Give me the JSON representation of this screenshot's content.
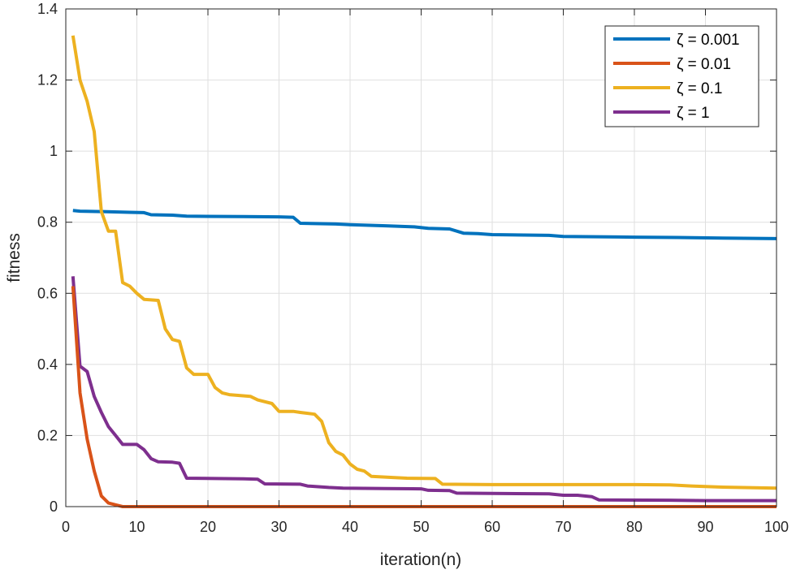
{
  "chart_data": {
    "type": "line",
    "title": "",
    "xlabel": "iteration(n)",
    "ylabel": "fitness",
    "xlim": [
      0,
      100
    ],
    "ylim": [
      0,
      1.4
    ],
    "xticks": [
      0,
      10,
      20,
      30,
      40,
      50,
      60,
      70,
      80,
      90,
      100
    ],
    "yticks": [
      0,
      0.2,
      0.4,
      0.6,
      0.8,
      1,
      1.2,
      1.4
    ],
    "ytick_labels": [
      "0",
      "0.2",
      "0.4",
      "0.6",
      "0.8",
      "1",
      "1.2",
      "1.4"
    ],
    "grid": true,
    "legend_position": "top-right",
    "series": [
      {
        "name": "ζ = 0.001",
        "color": "#0072BD",
        "points": [
          [
            1,
            0.833
          ],
          [
            2,
            0.831
          ],
          [
            5,
            0.83
          ],
          [
            9,
            0.828
          ],
          [
            11,
            0.827
          ],
          [
            12,
            0.821
          ],
          [
            15,
            0.82
          ],
          [
            17,
            0.817
          ],
          [
            25,
            0.816
          ],
          [
            30,
            0.815
          ],
          [
            32,
            0.814
          ],
          [
            33,
            0.797
          ],
          [
            38,
            0.795
          ],
          [
            40,
            0.793
          ],
          [
            45,
            0.79
          ],
          [
            49,
            0.787
          ],
          [
            51,
            0.783
          ],
          [
            54,
            0.781
          ],
          [
            56,
            0.769
          ],
          [
            58,
            0.768
          ],
          [
            60,
            0.765
          ],
          [
            68,
            0.763
          ],
          [
            70,
            0.76
          ],
          [
            80,
            0.758
          ],
          [
            86,
            0.757
          ],
          [
            94,
            0.755
          ],
          [
            100,
            0.754
          ]
        ]
      },
      {
        "name": "ζ = 0.01",
        "color": "#D95319",
        "points": [
          [
            1,
            0.62
          ],
          [
            2,
            0.32
          ],
          [
            3,
            0.19
          ],
          [
            4,
            0.1
          ],
          [
            5,
            0.03
          ],
          [
            6,
            0.01
          ],
          [
            7,
            0.005
          ],
          [
            8,
            0.0
          ],
          [
            100,
            0.0
          ]
        ]
      },
      {
        "name": "ζ = 0.1",
        "color": "#EDB120",
        "points": [
          [
            1,
            1.325
          ],
          [
            2,
            1.2
          ],
          [
            3,
            1.14
          ],
          [
            4,
            1.055
          ],
          [
            5,
            0.83
          ],
          [
            6,
            0.775
          ],
          [
            7,
            0.775
          ],
          [
            8,
            0.63
          ],
          [
            9,
            0.62
          ],
          [
            10,
            0.6
          ],
          [
            11,
            0.583
          ],
          [
            13,
            0.58
          ],
          [
            14,
            0.5
          ],
          [
            15,
            0.47
          ],
          [
            16,
            0.465
          ],
          [
            17,
            0.39
          ],
          [
            18,
            0.372
          ],
          [
            20,
            0.372
          ],
          [
            21,
            0.335
          ],
          [
            22,
            0.32
          ],
          [
            23,
            0.315
          ],
          [
            26,
            0.31
          ],
          [
            27,
            0.3
          ],
          [
            29,
            0.29
          ],
          [
            30,
            0.268
          ],
          [
            32,
            0.268
          ],
          [
            33,
            0.265
          ],
          [
            35,
            0.26
          ],
          [
            36,
            0.24
          ],
          [
            37,
            0.18
          ],
          [
            38,
            0.155
          ],
          [
            39,
            0.145
          ],
          [
            40,
            0.12
          ],
          [
            41,
            0.105
          ],
          [
            42,
            0.1
          ],
          [
            43,
            0.085
          ],
          [
            46,
            0.082
          ],
          [
            48,
            0.08
          ],
          [
            52,
            0.079
          ],
          [
            53,
            0.063
          ],
          [
            60,
            0.062
          ],
          [
            65,
            0.062
          ],
          [
            80,
            0.062
          ],
          [
            85,
            0.061
          ],
          [
            88,
            0.058
          ],
          [
            92,
            0.055
          ],
          [
            100,
            0.052
          ]
        ]
      },
      {
        "name": "ζ = 1",
        "color": "#7E2F8E",
        "points": [
          [
            1,
            0.648
          ],
          [
            2,
            0.395
          ],
          [
            3,
            0.38
          ],
          [
            4,
            0.31
          ],
          [
            5,
            0.265
          ],
          [
            6,
            0.225
          ],
          [
            7,
            0.2
          ],
          [
            8,
            0.175
          ],
          [
            10,
            0.175
          ],
          [
            11,
            0.16
          ],
          [
            12,
            0.135
          ],
          [
            13,
            0.126
          ],
          [
            15,
            0.125
          ],
          [
            16,
            0.122
          ],
          [
            17,
            0.08
          ],
          [
            25,
            0.078
          ],
          [
            27,
            0.077
          ],
          [
            28,
            0.064
          ],
          [
            33,
            0.063
          ],
          [
            34,
            0.058
          ],
          [
            37,
            0.054
          ],
          [
            39,
            0.052
          ],
          [
            45,
            0.051
          ],
          [
            50,
            0.05
          ],
          [
            51,
            0.046
          ],
          [
            54,
            0.045
          ],
          [
            55,
            0.038
          ],
          [
            60,
            0.037
          ],
          [
            68,
            0.036
          ],
          [
            70,
            0.032
          ],
          [
            72,
            0.032
          ],
          [
            74,
            0.028
          ],
          [
            75,
            0.019
          ],
          [
            85,
            0.018
          ],
          [
            90,
            0.017
          ],
          [
            100,
            0.017
          ]
        ]
      }
    ]
  }
}
